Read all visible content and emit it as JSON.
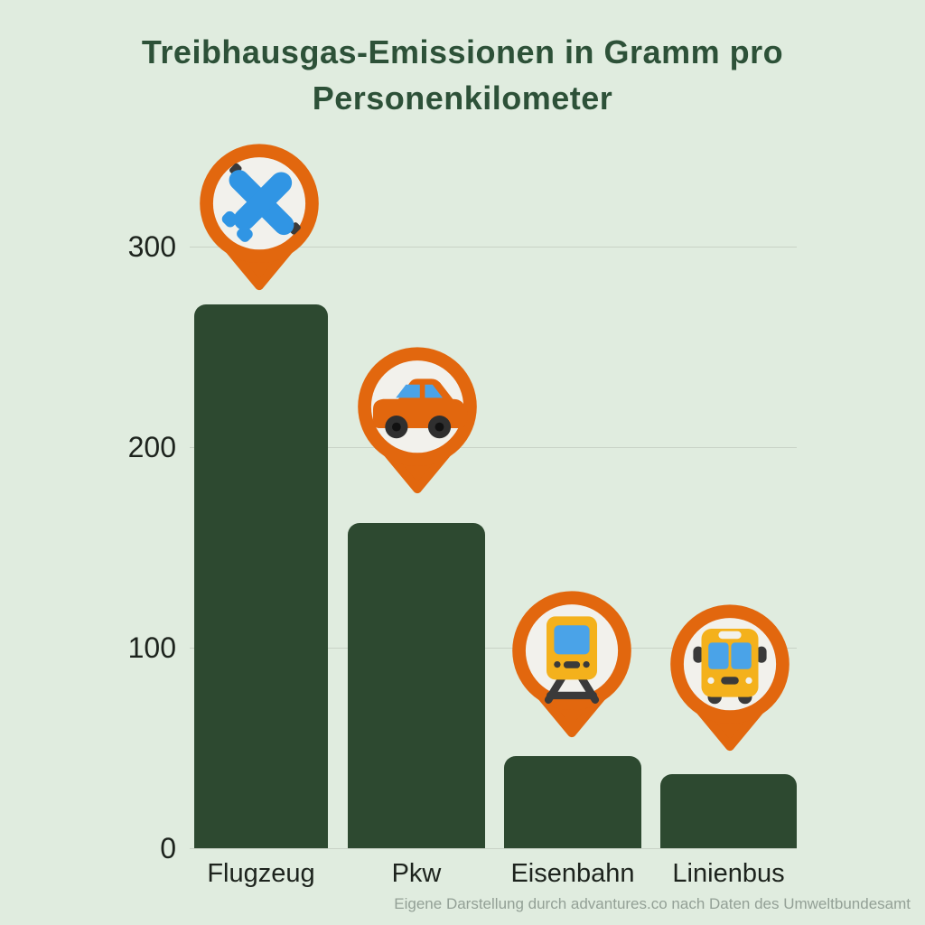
{
  "chart_data": {
    "type": "bar",
    "title": "Treibhausgas-Emissionen in Gramm pro Personenkilometer",
    "categories": [
      "Flugzeug",
      "Pkw",
      "Eisenbahn",
      "Linienbus"
    ],
    "values": [
      271,
      162,
      46,
      37
    ],
    "xlabel": "",
    "ylabel": "",
    "ylim": [
      0,
      330
    ],
    "yticks": [
      0,
      100,
      200,
      300
    ],
    "grid": true,
    "legend": "none",
    "bar_color": "#2d4930",
    "markers": [
      {
        "category": "Flugzeug",
        "icon": "airplane-icon"
      },
      {
        "category": "Pkw",
        "icon": "car-icon"
      },
      {
        "category": "Eisenbahn",
        "icon": "train-icon"
      },
      {
        "category": "Linienbus",
        "icon": "bus-icon"
      }
    ]
  },
  "footer": {
    "source": "Eigene Darstellung durch advantures.co  nach Daten des Umweltbundesamt"
  },
  "colors": {
    "bg": "#e0ecdf",
    "title": "#2d5138",
    "bar": "#2d4930",
    "grid": "#c9d2c6",
    "axis": "#1d231d",
    "source": "#93a096",
    "pin_orange": "#e2670e",
    "pin_inner": "#f2f1ec",
    "icon_blue": "#3095e4",
    "icon_yellow": "#f4b11c",
    "icon_dark": "#3a3a3a",
    "icon_window_blue": "#4aa3e8"
  }
}
